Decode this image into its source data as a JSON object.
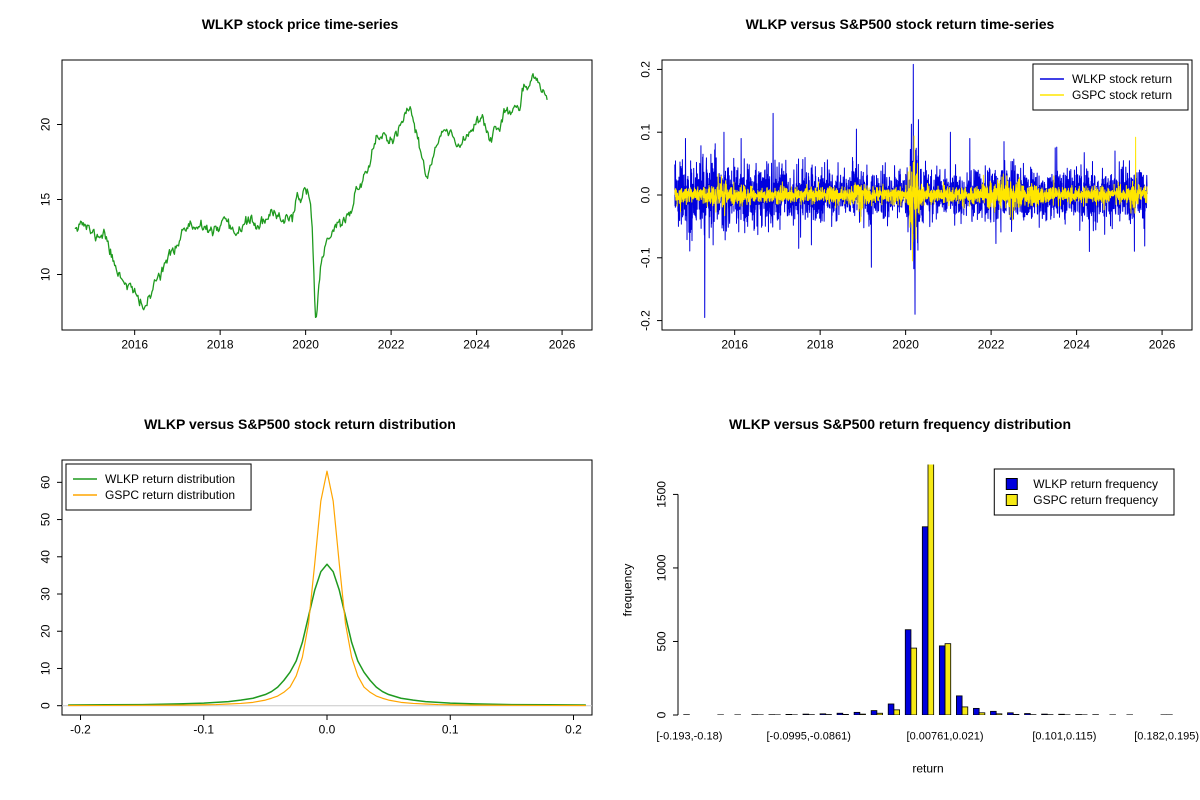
{
  "page": {
    "background": "#ffffff"
  },
  "chart_data": [
    {
      "id": "price",
      "type": "line",
      "title": "WLKP stock price time-series",
      "x_range": [
        2014.3,
        2026.7
      ],
      "y_range": [
        6.3,
        24.3
      ],
      "x_ticks": [
        2016,
        2018,
        2020,
        2022,
        2024,
        2026
      ],
      "x_tick_labels": [
        "2016",
        "2018",
        "2020",
        "2022",
        "2024",
        "2026"
      ],
      "y_ticks": [
        10,
        15,
        20
      ],
      "y_tick_labels": [
        "10",
        "15",
        "20"
      ],
      "box": true,
      "series": [
        {
          "name": "WLKP price",
          "color": "#1f9a1f",
          "lw": 1.3,
          "gen": "anchored",
          "seed": 11,
          "n": 570,
          "noise_sd": 0.18,
          "rho": 0.55,
          "x_span": [
            2014.6,
            2025.65
          ],
          "anchors": [
            [
              2014.6,
              13.3
            ],
            [
              2014.75,
              13.6
            ],
            [
              2014.95,
              12.9
            ],
            [
              2015.1,
              12.5
            ],
            [
              2015.3,
              12.8
            ],
            [
              2015.5,
              10.8
            ],
            [
              2015.7,
              9.8
            ],
            [
              2015.9,
              9.2
            ],
            [
              2016.05,
              8.4
            ],
            [
              2016.2,
              7.8
            ],
            [
              2016.35,
              8.3
            ],
            [
              2016.5,
              9.6
            ],
            [
              2016.7,
              10.9
            ],
            [
              2016.9,
              11.3
            ],
            [
              2017.1,
              12.9
            ],
            [
              2017.3,
              13.2
            ],
            [
              2017.5,
              12.9
            ],
            [
              2017.7,
              13.1
            ],
            [
              2017.9,
              12.8
            ],
            [
              2018.1,
              13.4
            ],
            [
              2018.3,
              12.6
            ],
            [
              2018.5,
              13.3
            ],
            [
              2018.7,
              13.6
            ],
            [
              2018.9,
              13.2
            ],
            [
              2019.1,
              13.6
            ],
            [
              2019.3,
              14.1
            ],
            [
              2019.5,
              13.7
            ],
            [
              2019.7,
              14.0
            ],
            [
              2019.9,
              15.2
            ],
            [
              2020.05,
              15.9
            ],
            [
              2020.15,
              13.5
            ],
            [
              2020.23,
              6.9
            ],
            [
              2020.35,
              10.5
            ],
            [
              2020.5,
              12.4
            ],
            [
              2020.7,
              13.2
            ],
            [
              2020.9,
              13.6
            ],
            [
              2021.05,
              14.2
            ],
            [
              2021.2,
              15.6
            ],
            [
              2021.35,
              16.4
            ],
            [
              2021.5,
              17.6
            ],
            [
              2021.65,
              18.9
            ],
            [
              2021.8,
              19.4
            ],
            [
              2021.95,
              18.8
            ],
            [
              2022.1,
              19.3
            ],
            [
              2022.3,
              20.1
            ],
            [
              2022.45,
              21.0
            ],
            [
              2022.6,
              19.6
            ],
            [
              2022.75,
              17.2
            ],
            [
              2022.85,
              16.4
            ],
            [
              2023.0,
              18.0
            ],
            [
              2023.15,
              19.2
            ],
            [
              2023.3,
              19.6
            ],
            [
              2023.5,
              18.7
            ],
            [
              2023.7,
              18.9
            ],
            [
              2023.85,
              19.6
            ],
            [
              2024.0,
              20.3
            ],
            [
              2024.15,
              20.6
            ],
            [
              2024.3,
              19.1
            ],
            [
              2024.45,
              19.6
            ],
            [
              2024.6,
              20.1
            ],
            [
              2024.75,
              20.7
            ],
            [
              2024.9,
              21.2
            ],
            [
              2025.05,
              21.6
            ],
            [
              2025.2,
              22.3
            ],
            [
              2025.35,
              23.3
            ],
            [
              2025.45,
              23.0
            ],
            [
              2025.55,
              22.1
            ],
            [
              2025.65,
              21.9
            ]
          ]
        }
      ]
    },
    {
      "id": "returns",
      "type": "line",
      "title": "WLKP versus S&P500 stock return time-series",
      "x_range": [
        2014.3,
        2026.7
      ],
      "y_range": [
        -0.215,
        0.215
      ],
      "x_ticks": [
        2016,
        2018,
        2020,
        2022,
        2024,
        2026
      ],
      "x_tick_labels": [
        "2016",
        "2018",
        "2020",
        "2022",
        "2024",
        "2026"
      ],
      "y_ticks": [
        -0.2,
        -0.1,
        0.0,
        0.1,
        0.2
      ],
      "y_tick_labels": [
        "-0.2",
        "-0.1",
        "0.0",
        "0.1",
        "0.2"
      ],
      "box": true,
      "legend": {
        "pos": "tr",
        "items": [
          {
            "label": "WLKP stock return",
            "color": "#0000DD",
            "sample": "line"
          },
          {
            "label": "GSPC stock return",
            "color": "#FFE600",
            "sample": "line"
          }
        ]
      },
      "series": [
        {
          "name": "WLKP stock return",
          "color": "#0000DD",
          "lw": 1,
          "gen": "noise",
          "seed": 23,
          "n": 2750,
          "x_span": [
            2014.6,
            2025.65
          ],
          "sd": 0.02,
          "tail_p": 0.02,
          "tail_mult": 2.1,
          "vol_events": [
            {
              "x": 2015.4,
              "mult": 1.5,
              "width": 0.9
            },
            {
              "x": 2020.2,
              "mult": 3.2,
              "width": 0.1
            },
            {
              "x": 2022.3,
              "mult": 1.25,
              "width": 0.5
            }
          ],
          "spikes": [
            [
              2014.85,
              0.09
            ],
            [
              2015.3,
              -0.195
            ],
            [
              2015.75,
              0.1
            ],
            [
              2016.15,
              0.09
            ],
            [
              2016.9,
              0.13
            ],
            [
              2017.5,
              -0.085
            ],
            [
              2018.85,
              0.105
            ],
            [
              2019.2,
              -0.115
            ],
            [
              2020.18,
              0.208
            ],
            [
              2020.22,
              -0.19
            ],
            [
              2020.3,
              0.12
            ],
            [
              2021.5,
              0.09
            ],
            [
              2022.3,
              0.085
            ],
            [
              2023.5,
              0.075
            ],
            [
              2024.3,
              -0.09
            ],
            [
              2024.9,
              0.07
            ]
          ]
        },
        {
          "name": "GSPC stock return",
          "color": "#FFE600",
          "lw": 1,
          "gen": "noise",
          "seed": 77,
          "n": 2750,
          "x_span": [
            2014.6,
            2025.65
          ],
          "sd": 0.0062,
          "tail_p": 0.015,
          "tail_mult": 2.0,
          "vol_events": [
            {
              "x": 2015.7,
              "mult": 1.6,
              "width": 0.3
            },
            {
              "x": 2018.3,
              "mult": 1.8,
              "width": 0.1
            },
            {
              "x": 2018.95,
              "mult": 2.0,
              "width": 0.15
            },
            {
              "x": 2020.2,
              "mult": 5.5,
              "width": 0.12
            },
            {
              "x": 2022.4,
              "mult": 2.2,
              "width": 0.5
            },
            {
              "x": 2025.35,
              "mult": 2.5,
              "width": 0.06
            }
          ],
          "spikes": [
            [
              2018.95,
              -0.042
            ],
            [
              2020.16,
              -0.105
            ],
            [
              2020.2,
              0.094
            ],
            [
              2020.24,
              -0.07
            ],
            [
              2022.5,
              -0.04
            ],
            [
              2025.38,
              0.092
            ]
          ]
        }
      ]
    },
    {
      "id": "density",
      "type": "line",
      "title": "WLKP versus S&P500 stock return distribution",
      "x_range": [
        -0.215,
        0.215
      ],
      "y_range": [
        -2.5,
        66
      ],
      "x_ticks": [
        -0.2,
        -0.1,
        0.0,
        0.1,
        0.2
      ],
      "x_tick_labels": [
        "-0.2",
        "-0.1",
        "0.0",
        "0.1",
        "0.2"
      ],
      "y_ticks": [
        0,
        10,
        20,
        30,
        40,
        50,
        60
      ],
      "y_tick_labels": [
        "0",
        "10",
        "20",
        "30",
        "40",
        "50",
        "60"
      ],
      "box": true,
      "hline": {
        "y": 0,
        "color": "#C8C8C8"
      },
      "legend": {
        "pos": "tl",
        "items": [
          {
            "label": "WLKP return distribution",
            "color": "#1f9a1f",
            "sample": "line"
          },
          {
            "label": "GSPC return distribution",
            "color": "#FFA500",
            "sample": "line"
          }
        ]
      },
      "series": [
        {
          "name": "WLKP return distribution",
          "color": "#1f9a1f",
          "lw": 1.5,
          "gen": "points",
          "points_x": [
            -0.21,
            -0.18,
            -0.15,
            -0.12,
            -0.1,
            -0.09,
            -0.08,
            -0.07,
            -0.06,
            -0.05,
            -0.045,
            -0.04,
            -0.035,
            -0.03,
            -0.025,
            -0.02,
            -0.015,
            -0.01,
            -0.005,
            0,
            0.005,
            0.01,
            0.015,
            0.02,
            0.025,
            0.03,
            0.035,
            0.04,
            0.045,
            0.05,
            0.06,
            0.07,
            0.08,
            0.09,
            0.1,
            0.12,
            0.15,
            0.18,
            0.21
          ],
          "points_y": [
            0.2,
            0.25,
            0.3,
            0.5,
            0.7,
            0.9,
            1.1,
            1.5,
            2.0,
            3.0,
            3.8,
            5.0,
            6.8,
            9.0,
            12,
            17,
            24,
            31,
            36,
            38,
            36,
            31,
            24,
            17,
            12,
            9.0,
            6.8,
            5.0,
            3.8,
            3.0,
            2.0,
            1.5,
            1.1,
            0.9,
            0.7,
            0.5,
            0.3,
            0.25,
            0.2
          ]
        },
        {
          "name": "GSPC return distribution",
          "color": "#FFA500",
          "lw": 1.2,
          "gen": "points",
          "points_x": [
            -0.21,
            -0.18,
            -0.15,
            -0.12,
            -0.1,
            -0.09,
            -0.08,
            -0.07,
            -0.06,
            -0.05,
            -0.045,
            -0.04,
            -0.035,
            -0.03,
            -0.025,
            -0.02,
            -0.015,
            -0.01,
            -0.005,
            0,
            0.005,
            0.01,
            0.015,
            0.02,
            0.025,
            0.03,
            0.035,
            0.04,
            0.045,
            0.05,
            0.06,
            0.07,
            0.08,
            0.09,
            0.1,
            0.12,
            0.15,
            0.18,
            0.21
          ],
          "points_y": [
            0.05,
            0.07,
            0.1,
            0.15,
            0.25,
            0.3,
            0.45,
            0.6,
            0.9,
            1.5,
            2.0,
            2.6,
            3.6,
            5.0,
            8.0,
            13,
            22,
            38,
            55,
            63,
            55,
            38,
            22,
            13,
            8.0,
            5.0,
            3.6,
            2.6,
            2.0,
            1.5,
            0.9,
            0.6,
            0.45,
            0.3,
            0.25,
            0.15,
            0.1,
            0.07,
            0.05
          ]
        }
      ]
    },
    {
      "id": "hist",
      "type": "bar",
      "title": "WLKP versus S&P500 return frequency distribution",
      "xlabel": "return",
      "ylabel": "frequency",
      "y_range": [
        0,
        1700
      ],
      "y_ticks": [
        0,
        500,
        1000,
        1500
      ],
      "y_tick_labels": [
        "0",
        "500",
        "1000",
        "1500"
      ],
      "box": false,
      "x_tick_bins": [
        0,
        7,
        15,
        22,
        28
      ],
      "x_tick_labels": [
        "[-0.193,-0.18)",
        "[-0.0995,-0.0861)",
        "[0.00761,0.021)",
        "[0.101,0.115)",
        "[0.182,0.195)"
      ],
      "legend": {
        "pos": "tr",
        "items": [
          {
            "label": "WLKP return frequency",
            "color": "#0000DD",
            "sample": "box"
          },
          {
            "label": "GSPC return frequency",
            "color": "#F5E915",
            "sample": "box"
          }
        ]
      },
      "bar_series": [
        {
          "name": "WLKP return frequency",
          "color": "#0000DD",
          "values": [
            2,
            0,
            1,
            1,
            2,
            2,
            4,
            6,
            8,
            12,
            18,
            30,
            75,
            580,
            1280,
            470,
            130,
            45,
            25,
            15,
            10,
            6,
            5,
            3,
            2,
            1,
            1,
            0,
            1
          ]
        },
        {
          "name": "GSPC return frequency",
          "color": "#F5E915",
          "values": [
            0,
            0,
            0,
            0,
            1,
            1,
            1,
            2,
            3,
            4,
            6,
            12,
            35,
            455,
            1769,
            485,
            55,
            15,
            8,
            4,
            2,
            2,
            1,
            1,
            0,
            0,
            0,
            0,
            1
          ]
        }
      ]
    }
  ]
}
